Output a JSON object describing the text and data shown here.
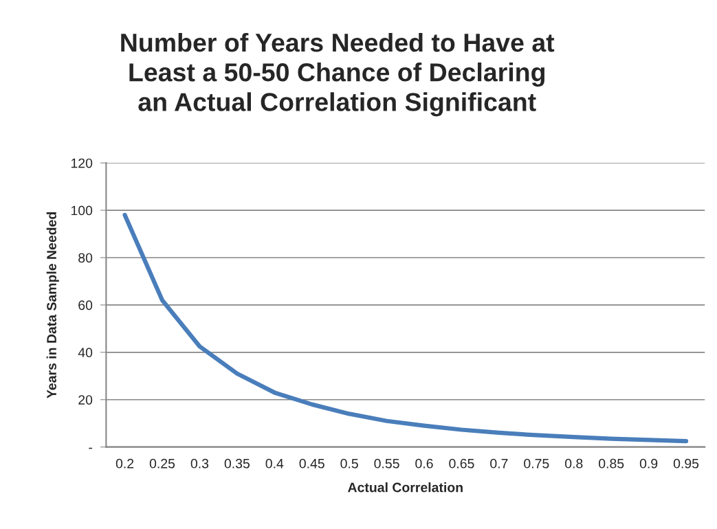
{
  "chart_data": {
    "type": "line",
    "title": "Number of Years Needed to Have at\nLeast a 50-50 Chance of Declaring\nan Actual Correlation Significant",
    "xlabel": "Actual Correlation",
    "ylabel": "Years in Data Sample Needed",
    "categories": [
      "0.2",
      "0.25",
      "0.3",
      "0.35",
      "0.4",
      "0.45",
      "0.5",
      "0.55",
      "0.6",
      "0.65",
      "0.7",
      "0.75",
      "0.8",
      "0.85",
      "0.9",
      "0.95"
    ],
    "series": [
      {
        "color": "#4a7ebb",
        "values": [
          98,
          62,
          42.5,
          31,
          23,
          18,
          14,
          11,
          9,
          7.3,
          6,
          5,
          4.2,
          3.5,
          3,
          2.5
        ]
      }
    ],
    "ylim": [
      0,
      120
    ],
    "yticks": [
      {
        "value": 0,
        "label": "-"
      },
      20,
      40,
      60,
      80,
      100,
      120
    ],
    "grid": "y",
    "marker": "none",
    "line_style": "solid"
  }
}
